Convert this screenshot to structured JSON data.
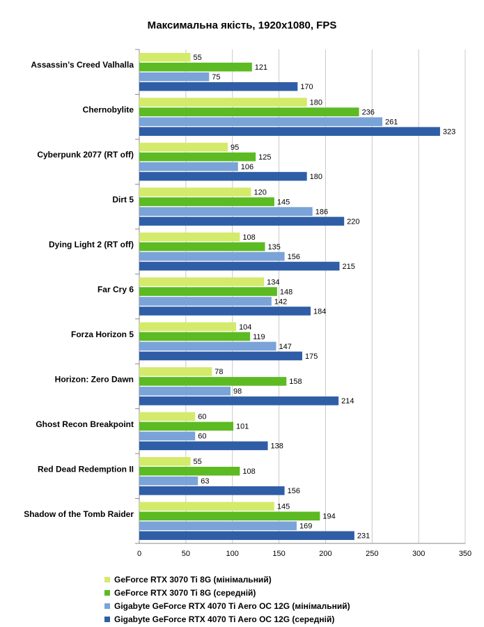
{
  "chart_data": {
    "type": "bar",
    "orientation": "horizontal",
    "title": "Максимальна якість, 1920x1080, FPS",
    "categories": [
      "Assassin’s Creed Valhalla",
      "Chernobylite",
      "Cyberpunk 2077 (RT off)",
      "Dirt 5",
      "Dying Light 2 (RT off)",
      "Far Cry 6",
      "Forza Horizon 5",
      "Horizon: Zero Dawn",
      "Ghost Recon Breakpoint",
      "Red Dead Redemption II",
      "Shadow of the Tomb Raider"
    ],
    "series": [
      {
        "name": "GeForce RTX 3070 Ti 8G (мінімальний)",
        "color": "#d4ea6b",
        "values": [
          55,
          180,
          95,
          120,
          108,
          134,
          104,
          78,
          60,
          55,
          145
        ]
      },
      {
        "name": "GeForce RTX 3070 Ti 8G (середній)",
        "color": "#5cba23",
        "values": [
          121,
          236,
          125,
          145,
          135,
          148,
          119,
          158,
          101,
          108,
          194
        ]
      },
      {
        "name": "Gigabyte GeForce RTX 4070 Ti Aero OC 12G (мінімальний)",
        "color": "#7aa3d8",
        "values": [
          75,
          261,
          106,
          186,
          156,
          142,
          147,
          98,
          60,
          63,
          169
        ]
      },
      {
        "name": "Gigabyte GeForce RTX 4070 Ti Aero OC 12G (середній)",
        "color": "#2f5ea6",
        "values": [
          170,
          323,
          180,
          220,
          215,
          184,
          175,
          214,
          138,
          156,
          231
        ]
      }
    ],
    "xlim": [
      0,
      350
    ],
    "xticks": [
      "0",
      "50",
      "100",
      "150",
      "200",
      "250",
      "300",
      "350"
    ],
    "grid": true,
    "legend_position": "bottom"
  }
}
